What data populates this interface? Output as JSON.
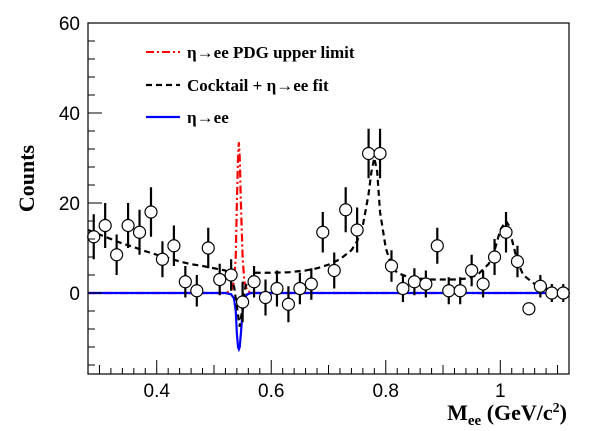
{
  "chart_data": {
    "type": "scatter",
    "xlabel": "M",
    "xlabel_sub": "ee",
    "xlabel_unit_pre": " (GeV/c",
    "xlabel_unit_sup": "2",
    "xlabel_unit_post": ")",
    "ylabel": "Counts",
    "xlim": [
      0.28,
      1.12
    ],
    "ylim": [
      -18,
      60
    ],
    "xticks": [
      0.4,
      0.6,
      0.8,
      1.0
    ],
    "xtick_labels": [
      "0.4",
      "0.6",
      "0.8",
      "1"
    ],
    "yticks": [
      0,
      20,
      40,
      60
    ],
    "ytick_labels": [
      "0",
      "20",
      "40",
      "60"
    ],
    "legend_placement": "top-left",
    "legend": [
      {
        "label": "η→ee PDG upper limit",
        "color": "#ff0000",
        "style": "dash-dot"
      },
      {
        "label": "Cocktail + η→ee fit",
        "color": "#000000",
        "style": "dashed"
      },
      {
        "label": "η→ee",
        "color": "#0000ff",
        "style": "solid"
      }
    ],
    "series": [
      {
        "name": "Data",
        "kind": "points",
        "points": [
          {
            "x": 0.29,
            "y": 12.5,
            "err": 5.0
          },
          {
            "x": 0.31,
            "y": 15.0,
            "err": 5.0
          },
          {
            "x": 0.33,
            "y": 8.5,
            "err": 4.5
          },
          {
            "x": 0.35,
            "y": 15.0,
            "err": 5.0
          },
          {
            "x": 0.37,
            "y": 13.5,
            "err": 5.0
          },
          {
            "x": 0.39,
            "y": 18.0,
            "err": 5.5
          },
          {
            "x": 0.41,
            "y": 7.5,
            "err": 4.0
          },
          {
            "x": 0.43,
            "y": 10.5,
            "err": 4.5
          },
          {
            "x": 0.45,
            "y": 2.5,
            "err": 3.5
          },
          {
            "x": 0.47,
            "y": 0.5,
            "err": 3.5
          },
          {
            "x": 0.49,
            "y": 10.0,
            "err": 4.5
          },
          {
            "x": 0.51,
            "y": 3.0,
            "err": 3.5
          },
          {
            "x": 0.53,
            "y": 4.0,
            "err": 3.5
          },
          {
            "x": 0.55,
            "y": -2.0,
            "err": 4.5
          },
          {
            "x": 0.57,
            "y": 2.5,
            "err": 3.5
          },
          {
            "x": 0.59,
            "y": -1.0,
            "err": 4.0
          },
          {
            "x": 0.61,
            "y": 1.0,
            "err": 4.0
          },
          {
            "x": 0.63,
            "y": -2.5,
            "err": 4.0
          },
          {
            "x": 0.65,
            "y": 1.0,
            "err": 3.5
          },
          {
            "x": 0.67,
            "y": 2.0,
            "err": 3.5
          },
          {
            "x": 0.69,
            "y": 13.5,
            "err": 4.5
          },
          {
            "x": 0.71,
            "y": 5.0,
            "err": 4.0
          },
          {
            "x": 0.73,
            "y": 18.5,
            "err": 5.0
          },
          {
            "x": 0.75,
            "y": 14.0,
            "err": 5.0
          },
          {
            "x": 0.77,
            "y": 31.0,
            "err": 5.5
          },
          {
            "x": 0.79,
            "y": 31.0,
            "err": 5.5
          },
          {
            "x": 0.81,
            "y": 6.0,
            "err": 3.5
          },
          {
            "x": 0.83,
            "y": 1.0,
            "err": 3.0
          },
          {
            "x": 0.85,
            "y": 2.5,
            "err": 3.0
          },
          {
            "x": 0.87,
            "y": 2.0,
            "err": 3.0
          },
          {
            "x": 0.89,
            "y": 10.5,
            "err": 4.0
          },
          {
            "x": 0.91,
            "y": 0.5,
            "err": 3.0
          },
          {
            "x": 0.93,
            "y": 0.5,
            "err": 3.0
          },
          {
            "x": 0.95,
            "y": 5.0,
            "err": 3.5
          },
          {
            "x": 0.97,
            "y": 2.0,
            "err": 3.0
          },
          {
            "x": 0.99,
            "y": 8.0,
            "err": 4.0
          },
          {
            "x": 1.01,
            "y": 13.5,
            "err": 4.5
          },
          {
            "x": 1.03,
            "y": 7.0,
            "err": 3.5
          },
          {
            "x": 1.05,
            "y": -3.5,
            "err": 0.0
          },
          {
            "x": 1.07,
            "y": 1.5,
            "err": 2.5
          },
          {
            "x": 1.09,
            "y": 0.0,
            "err": 2.0
          },
          {
            "x": 1.11,
            "y": 0.0,
            "err": 2.0
          }
        ]
      },
      {
        "name": "Cocktail + η→ee fit",
        "kind": "line",
        "color": "#000000",
        "dash": "6,4",
        "x": [
          0.28,
          0.3,
          0.32,
          0.34,
          0.36,
          0.38,
          0.4,
          0.42,
          0.44,
          0.46,
          0.48,
          0.5,
          0.52,
          0.535,
          0.545,
          0.555,
          0.57,
          0.6,
          0.63,
          0.66,
          0.68,
          0.7,
          0.72,
          0.74,
          0.75,
          0.76,
          0.77,
          0.775,
          0.78,
          0.785,
          0.79,
          0.8,
          0.81,
          0.82,
          0.84,
          0.86,
          0.88,
          0.9,
          0.92,
          0.94,
          0.96,
          0.98,
          0.99,
          1.0,
          1.01,
          1.015,
          1.02,
          1.03,
          1.04,
          1.06,
          1.08,
          1.1,
          1.12
        ],
        "y": [
          14.0,
          13.0,
          12.0,
          11.0,
          10.2,
          9.3,
          8.5,
          7.8,
          7.0,
          6.4,
          6.0,
          5.5,
          5.0,
          1.5,
          -7.5,
          1.5,
          4.5,
          4.5,
          4.6,
          5.0,
          5.5,
          6.3,
          7.5,
          9.5,
          11.5,
          15.0,
          22.0,
          27.0,
          30.0,
          27.0,
          18.0,
          10.0,
          6.0,
          4.5,
          3.5,
          3.2,
          3.0,
          3.0,
          3.0,
          3.2,
          4.0,
          6.5,
          9.5,
          14.0,
          16.0,
          15.0,
          12.0,
          7.0,
          4.0,
          2.0,
          1.0,
          0.5,
          0.3
        ]
      },
      {
        "name": "η→ee PDG upper limit",
        "kind": "line",
        "color": "#ff0000",
        "dash": "8,3,2,3",
        "x": [
          0.28,
          0.52,
          0.53,
          0.535,
          0.538,
          0.54,
          0.542,
          0.5435,
          0.545,
          0.547,
          0.55,
          0.553,
          0.558,
          0.565,
          1.12
        ],
        "y": [
          0,
          0,
          0.5,
          2.5,
          8.0,
          20.0,
          30.0,
          33.5,
          30.0,
          20.0,
          8.0,
          2.5,
          0.5,
          0,
          0
        ]
      },
      {
        "name": "η→ee",
        "kind": "line",
        "color": "#0000ff",
        "dash": "",
        "x": [
          0.28,
          0.52,
          0.53,
          0.535,
          0.538,
          0.54,
          0.542,
          0.5435,
          0.545,
          0.547,
          0.55,
          0.553,
          0.558,
          0.565,
          1.12
        ],
        "y": [
          0,
          0,
          -0.3,
          -1.2,
          -4.0,
          -9.0,
          -12.0,
          -12.5,
          -12.0,
          -9.0,
          -4.0,
          -1.2,
          -0.3,
          0,
          0
        ]
      }
    ]
  }
}
